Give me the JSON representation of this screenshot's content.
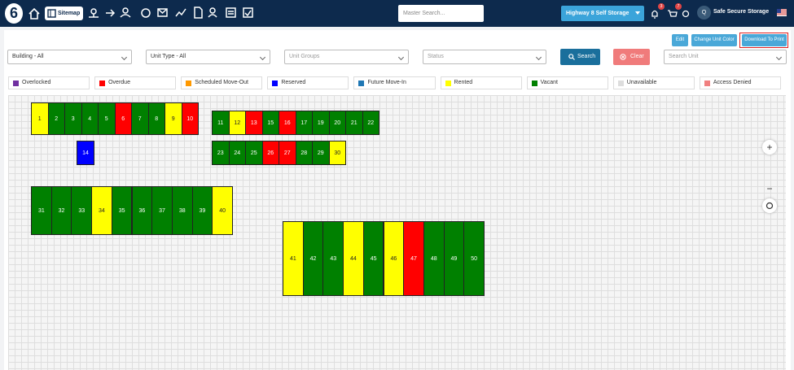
{
  "nav": {
    "logo": "6",
    "active_item": "Sitemap",
    "search_placeholder": "Master Search...",
    "facility": "Highway 8 Self Storage",
    "notifications": "3",
    "cart": "7",
    "avatar": "Q",
    "user": "Safe Secure Storage"
  },
  "toolbar": {
    "buttons": [
      "Edit",
      "Change Unit Color",
      "Download To Print"
    ]
  },
  "filters": {
    "selects": [
      "Building - All",
      "Unit Type - All",
      "Unit Groups",
      "Status"
    ],
    "search": "Search",
    "clear": "Clear",
    "unit_search": "Search Unit"
  },
  "legend": [
    {
      "label": "Overlocked",
      "color": "#7030a0"
    },
    {
      "label": "Overdue",
      "color": "#ff0000"
    },
    {
      "label": "Scheduled Move-Out",
      "color": "#ff9900"
    },
    {
      "label": "Reserved",
      "color": "#0000ff"
    },
    {
      "label": "Future Move-In",
      "color": "#1f77b4"
    },
    {
      "label": "Rented",
      "color": "#ffff00"
    },
    {
      "label": "Vacant",
      "color": "#008000"
    },
    {
      "label": "Unavailable",
      "color": "#dddddd"
    },
    {
      "label": "Access Denied",
      "color": "#f08080"
    }
  ],
  "blocks": [
    {
      "units": [
        {
          "label": "1",
          "color": "#ffff00"
        },
        {
          "label": "2",
          "color": "#008000"
        },
        {
          "label": "3",
          "color": "#008000"
        },
        {
          "label": "4",
          "color": "#008000"
        },
        {
          "label": "5",
          "color": "#008000"
        },
        {
          "label": "6",
          "color": "#ff0000"
        },
        {
          "label": "7",
          "color": "#008000"
        },
        {
          "label": "8",
          "color": "#008000"
        },
        {
          "label": "9",
          "color": "#ffff00"
        },
        {
          "label": "10",
          "color": "#ff0000"
        }
      ]
    },
    {
      "units": [
        {
          "label": "14",
          "color": "#0000ff"
        }
      ]
    },
    {
      "units": [
        {
          "label": "11",
          "color": "#008000"
        },
        {
          "label": "12",
          "color": "#ffff00"
        },
        {
          "label": "13",
          "color": "#ff0000"
        },
        {
          "label": "15",
          "color": "#008000"
        },
        {
          "label": "16",
          "color": "#ff0000"
        },
        {
          "label": "17",
          "color": "#008000"
        },
        {
          "label": "19",
          "color": "#008000"
        },
        {
          "label": "20",
          "color": "#008000"
        },
        {
          "label": "21",
          "color": "#008000"
        },
        {
          "label": "22",
          "color": "#008000"
        }
      ]
    },
    {
      "units": [
        {
          "label": "23",
          "color": "#008000"
        },
        {
          "label": "24",
          "color": "#008000"
        },
        {
          "label": "25",
          "color": "#008000"
        },
        {
          "label": "26",
          "color": "#ff0000"
        },
        {
          "label": "27",
          "color": "#ff0000"
        },
        {
          "label": "28",
          "color": "#008000"
        },
        {
          "label": "29",
          "color": "#008000"
        },
        {
          "label": "30",
          "color": "#ffff00"
        }
      ]
    },
    {
      "units": [
        {
          "label": "31",
          "color": "#008000"
        },
        {
          "label": "32",
          "color": "#008000"
        },
        {
          "label": "33",
          "color": "#008000"
        },
        {
          "label": "34",
          "color": "#ffff00"
        },
        {
          "label": "35",
          "color": "#008000"
        },
        {
          "label": "36",
          "color": "#008000"
        },
        {
          "label": "37",
          "color": "#008000"
        },
        {
          "label": "38",
          "color": "#008000"
        },
        {
          "label": "39",
          "color": "#008000"
        },
        {
          "label": "40",
          "color": "#ffff00"
        }
      ]
    },
    {
      "units": [
        {
          "label": "41",
          "color": "#ffff00"
        },
        {
          "label": "42",
          "color": "#008000"
        },
        {
          "label": "43",
          "color": "#008000"
        },
        {
          "label": "44",
          "color": "#ffff00"
        },
        {
          "label": "45",
          "color": "#008000"
        },
        {
          "label": "46",
          "color": "#ffff00"
        },
        {
          "label": "47",
          "color": "#ff0000"
        },
        {
          "label": "48",
          "color": "#008000"
        },
        {
          "label": "49",
          "color": "#008000"
        },
        {
          "label": "50",
          "color": "#008000"
        }
      ]
    }
  ]
}
